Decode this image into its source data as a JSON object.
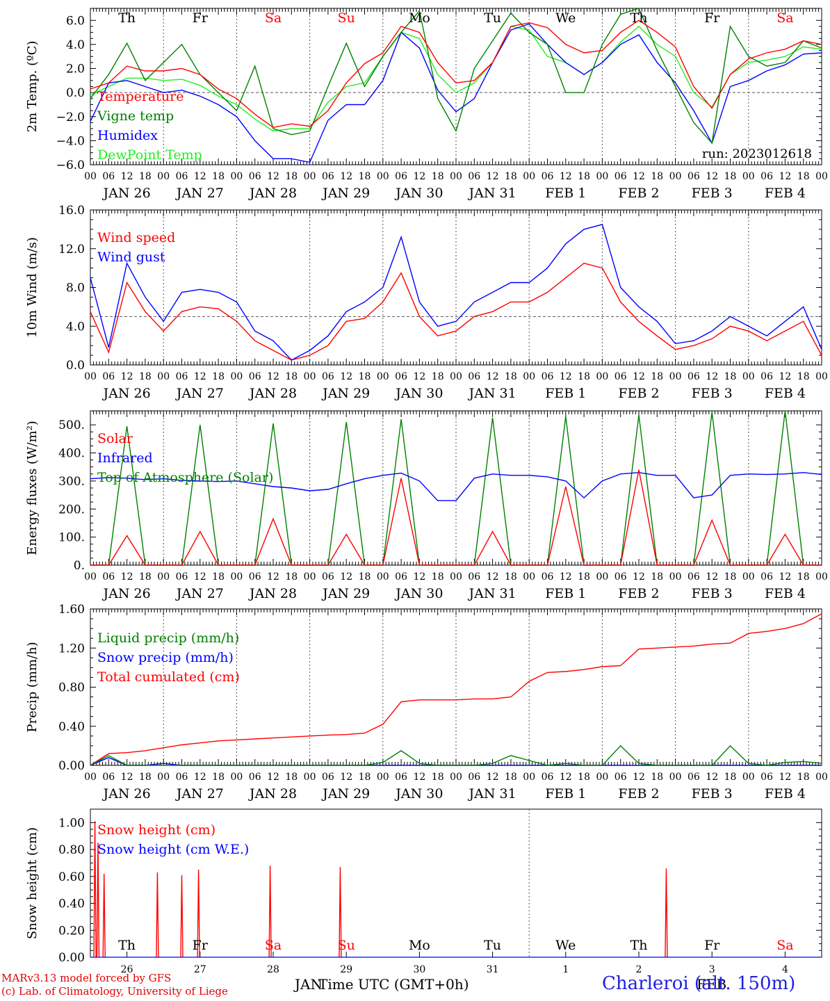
{
  "colors": {
    "red": "#ff0000",
    "green": "#008000",
    "blue": "#0000ff",
    "lightgreen": "#22ee22",
    "grid": "#555555",
    "weekend": "#ff0000"
  },
  "days": {
    "weekday_top": [
      "Th",
      "Fr",
      "Sa",
      "Su",
      "Mo",
      "Tu",
      "We",
      "Th",
      "Fr",
      "Sa"
    ],
    "weekday_bottom": [
      "Th",
      "Fr",
      "Sa",
      "Su",
      "Mo",
      "Tu",
      "We",
      "Th",
      "Fr",
      "Sa"
    ],
    "weekend_flags": [
      false,
      false,
      true,
      true,
      false,
      false,
      false,
      false,
      false,
      true
    ],
    "date_labels": [
      "JAN 26",
      "JAN 27",
      "JAN 28",
      "JAN 29",
      "JAN 30",
      "JAN 31",
      "FEB  1",
      "FEB  2",
      "FEB  3",
      "FEB  4"
    ],
    "hour_ticks": [
      "00",
      "06",
      "12",
      "18"
    ],
    "last_hour": "00",
    "day_numbers": [
      "26",
      "27",
      "28",
      "29",
      "30",
      "31",
      "1",
      "2",
      "3",
      "4"
    ]
  },
  "chart_data": [
    {
      "type": "line",
      "id": "temperature",
      "ylabel": "2m Temp. (ºC)",
      "ylim": [
        -6,
        7
      ],
      "yticks": [
        "6.0",
        "4.0",
        "2.0",
        "0.0",
        "−2.0",
        "−4.0",
        "−6.0"
      ],
      "ytick_values": [
        6,
        4,
        2,
        0,
        -2,
        -4,
        -6
      ],
      "x_hours": [
        0,
        6,
        12,
        18,
        24,
        30,
        36,
        42,
        48,
        54,
        60,
        66,
        72,
        78,
        84,
        90,
        96,
        102,
        108,
        114,
        120,
        126,
        132,
        138,
        144,
        150,
        156,
        162,
        168,
        174,
        180,
        186,
        192,
        198,
        204,
        210,
        216,
        222,
        228,
        234,
        240
      ],
      "series": [
        {
          "name": "Temperature",
          "color": "red",
          "values": [
            0.3,
            0.8,
            2.2,
            1.8,
            1.8,
            2.0,
            1.5,
            0.3,
            -0.5,
            -1.8,
            -2.9,
            -2.6,
            -2.8,
            -1.5,
            0.8,
            2.4,
            3.3,
            5.5,
            5.0,
            2.5,
            0.8,
            1.0,
            2.5,
            5.5,
            5.8,
            5.4,
            4.0,
            3.3,
            3.5,
            5.0,
            6.0,
            5.0,
            3.8,
            0.5,
            -1.3,
            1.5,
            2.8,
            3.3,
            3.6,
            4.3,
            4.0
          ]
        },
        {
          "name": "Vigne temp",
          "color": "green",
          "values": [
            -0.5,
            1.5,
            4.1,
            1.0,
            2.5,
            4.0,
            1.5,
            0.0,
            -1.5,
            2.2,
            -3.0,
            -3.5,
            -3.2,
            0.5,
            4.1,
            0.5,
            3.0,
            5.0,
            6.8,
            -0.5,
            -3.2,
            2.0,
            4.3,
            6.6,
            5.0,
            4.0,
            0.0,
            0.0,
            4.0,
            6.5,
            7.0,
            3.5,
            0.5,
            -2.5,
            -4.2,
            5.5,
            3.0,
            2.2,
            2.5,
            4.3,
            3.7
          ]
        },
        {
          "name": "Humidex",
          "color": "blue",
          "values": [
            -2.4,
            0.8,
            1.0,
            0.5,
            0.0,
            0.2,
            -0.3,
            -1.0,
            -2.0,
            -4.0,
            -5.5,
            -5.5,
            -5.8,
            -2.3,
            -1.0,
            -1.0,
            1.0,
            5.0,
            3.7,
            0.2,
            -1.6,
            -0.5,
            2.5,
            5.2,
            5.7,
            4.0,
            2.5,
            1.5,
            2.5,
            4.0,
            4.8,
            2.5,
            0.8,
            -1.5,
            -4.2,
            0.5,
            1.0,
            1.8,
            2.3,
            3.2,
            3.3
          ]
        },
        {
          "name": "DewPoint Temp",
          "color": "lightgreen",
          "values": [
            -0.2,
            0.5,
            1.2,
            1.2,
            1.0,
            1.1,
            0.6,
            -0.3,
            -1.0,
            -2.2,
            -3.2,
            -3.0,
            -3.0,
            -0.8,
            0.5,
            0.8,
            3.0,
            5.0,
            4.5,
            1.5,
            0.0,
            0.8,
            2.5,
            5.5,
            5.2,
            3.0,
            2.5,
            1.5,
            2.5,
            4.2,
            5.5,
            4.0,
            3.0,
            0.0,
            -1.2,
            1.5,
            2.5,
            2.7,
            3.0,
            3.8,
            3.6
          ]
        }
      ],
      "threshold": 0,
      "annotation": "run: 2023012618"
    },
    {
      "type": "line",
      "id": "wind",
      "ylabel": "10m Wind (m/s)",
      "ylim": [
        0,
        16
      ],
      "yticks": [
        "16.0",
        "12.0",
        "8.0",
        "4.0",
        "0.0"
      ],
      "ytick_values": [
        16,
        12,
        8,
        4,
        0
      ],
      "x_hours": [
        0,
        6,
        12,
        18,
        24,
        30,
        36,
        42,
        48,
        54,
        60,
        66,
        72,
        78,
        84,
        90,
        96,
        102,
        108,
        114,
        120,
        126,
        132,
        138,
        144,
        150,
        156,
        162,
        168,
        174,
        180,
        186,
        192,
        198,
        204,
        210,
        216,
        222,
        228,
        234,
        240
      ],
      "series": [
        {
          "name": "Wind speed",
          "color": "red",
          "values": [
            5.5,
            1.3,
            8.5,
            5.5,
            3.5,
            5.5,
            6.0,
            5.8,
            4.5,
            2.5,
            1.5,
            0.5,
            1.0,
            2.0,
            4.5,
            4.8,
            6.5,
            9.5,
            5.0,
            3.0,
            3.5,
            5.0,
            5.5,
            6.5,
            6.5,
            7.5,
            9.0,
            10.5,
            10.0,
            6.5,
            4.5,
            3.0,
            1.6,
            2.0,
            2.7,
            4.0,
            3.5,
            2.5,
            3.5,
            4.5,
            1.0
          ]
        },
        {
          "name": "Wind gust",
          "color": "blue",
          "values": [
            9.0,
            1.8,
            10.5,
            7.0,
            4.5,
            7.5,
            7.8,
            7.5,
            6.5,
            3.5,
            2.5,
            0.5,
            1.5,
            3.0,
            5.5,
            6.5,
            8.0,
            13.2,
            6.5,
            4.0,
            4.5,
            6.5,
            7.5,
            8.5,
            8.5,
            10.0,
            12.5,
            14.0,
            14.5,
            8.0,
            6.0,
            4.5,
            2.2,
            2.5,
            3.5,
            5.0,
            4.0,
            3.0,
            4.5,
            6.0,
            1.6
          ]
        }
      ],
      "threshold": 5
    },
    {
      "type": "line",
      "id": "energy",
      "ylabel": "Energy fluxes (W/m²)",
      "ylim": [
        0,
        550
      ],
      "yticks": [
        "500.",
        "400.",
        "300.",
        "200.",
        "100.",
        "0."
      ],
      "ytick_values": [
        500,
        400,
        300,
        200,
        100,
        0
      ],
      "x_hours": [
        0,
        6,
        12,
        18,
        24,
        30,
        36,
        42,
        48,
        54,
        60,
        66,
        72,
        78,
        84,
        90,
        96,
        102,
        108,
        114,
        120,
        126,
        132,
        138,
        144,
        150,
        156,
        162,
        168,
        174,
        180,
        186,
        192,
        198,
        204,
        210,
        216,
        222,
        228,
        234,
        240
      ],
      "series": [
        {
          "name": "Solar",
          "color": "red",
          "values": [
            0,
            0,
            105,
            0,
            0,
            0,
            120,
            0,
            0,
            0,
            165,
            0,
            0,
            0,
            110,
            0,
            0,
            310,
            0,
            0,
            0,
            0,
            120,
            0,
            0,
            0,
            280,
            0,
            0,
            0,
            340,
            0,
            0,
            0,
            160,
            0,
            0,
            0,
            110,
            0,
            0
          ]
        },
        {
          "name": "Infrared",
          "color": "blue",
          "values": [
            308,
            312,
            310,
            305,
            308,
            302,
            300,
            298,
            300,
            290,
            280,
            275,
            265,
            270,
            290,
            308,
            320,
            328,
            300,
            230,
            230,
            310,
            325,
            320,
            320,
            315,
            300,
            240,
            300,
            325,
            330,
            320,
            320,
            240,
            250,
            320,
            325,
            323,
            325,
            330,
            323
          ]
        },
        {
          "name": "Top of Atmosphere (Solar)",
          "color": "green",
          "values": [
            0,
            0,
            495,
            0,
            0,
            0,
            500,
            0,
            0,
            0,
            505,
            0,
            0,
            0,
            510,
            0,
            0,
            520,
            0,
            0,
            0,
            0,
            525,
            0,
            0,
            0,
            530,
            0,
            0,
            0,
            535,
            0,
            0,
            0,
            545,
            0,
            0,
            0,
            550,
            0,
            0
          ]
        }
      ]
    },
    {
      "type": "line",
      "id": "precip",
      "ylabel": "Precip (mm/h)",
      "ylim": [
        0,
        1.6
      ],
      "yticks": [
        "1.60",
        "1.20",
        "0.80",
        "0.40",
        "0.00"
      ],
      "ytick_values": [
        1.6,
        1.2,
        0.8,
        0.4,
        0
      ],
      "x_hours": [
        0,
        6,
        12,
        18,
        24,
        30,
        36,
        42,
        48,
        54,
        60,
        66,
        72,
        78,
        84,
        90,
        96,
        102,
        108,
        114,
        120,
        126,
        132,
        138,
        144,
        150,
        156,
        162,
        168,
        174,
        180,
        186,
        192,
        198,
        204,
        210,
        216,
        222,
        228,
        234,
        240
      ],
      "series": [
        {
          "name": "Liquid precip (mm/h)",
          "color": "green",
          "values": [
            0,
            0.1,
            0,
            0,
            0,
            0,
            0,
            0,
            0,
            0,
            0,
            0,
            0,
            0,
            0,
            0,
            0.03,
            0.15,
            0.02,
            0,
            0,
            0,
            0.02,
            0.1,
            0.05,
            0,
            0.02,
            0,
            0,
            0.2,
            0.02,
            0,
            0,
            0,
            0,
            0.2,
            0.02,
            0,
            0.03,
            0.04,
            0.02
          ]
        },
        {
          "name": "Snow precip (mm/h)",
          "color": "blue",
          "values": [
            0,
            0.08,
            0,
            0,
            0.02,
            0,
            0,
            0,
            0,
            0,
            0,
            0,
            0,
            0,
            0,
            0,
            0,
            0,
            0,
            0,
            0,
            0,
            0,
            0,
            0,
            0,
            0,
            0,
            0,
            0,
            0,
            0,
            0,
            0,
            0,
            0,
            0,
            0,
            0,
            0,
            0
          ]
        },
        {
          "name": "Total cumulated (cm)",
          "color": "red",
          "values": [
            0,
            0.12,
            0.13,
            0.15,
            0.18,
            0.21,
            0.23,
            0.25,
            0.26,
            0.27,
            0.28,
            0.29,
            0.3,
            0.31,
            0.315,
            0.33,
            0.42,
            0.65,
            0.67,
            0.67,
            0.67,
            0.68,
            0.68,
            0.7,
            0.86,
            0.95,
            0.96,
            0.98,
            1.01,
            1.02,
            1.19,
            1.2,
            1.21,
            1.22,
            1.24,
            1.25,
            1.35,
            1.37,
            1.4,
            1.45,
            1.55
          ]
        }
      ]
    },
    {
      "type": "line",
      "id": "snow",
      "ylabel": "Snow height (cm)",
      "ylim": [
        0,
        1.1
      ],
      "yticks": [
        "1.00",
        "0.80",
        "0.60",
        "0.40",
        "0.20",
        "0.00"
      ],
      "ytick_values": [
        1.0,
        0.8,
        0.6,
        0.4,
        0.2,
        0
      ],
      "series": [
        {
          "name": "Snow height (cm)",
          "color": "red",
          "spikes": [
            [
              1.5,
              1.01
            ],
            [
              2.5,
              0.85
            ],
            [
              4.5,
              0.62
            ],
            [
              22,
              0.63
            ],
            [
              30,
              0.61
            ],
            [
              35.5,
              0.65
            ],
            [
              59,
              0.68
            ],
            [
              82,
              0.67
            ],
            [
              189,
              0.66
            ]
          ]
        },
        {
          "name": "Snow height (cm W.E.)",
          "color": "blue",
          "spikes": []
        }
      ]
    }
  ],
  "footer": {
    "credit_line1": "MARv3.13 model forced by GFS",
    "credit_line2": "(c) Lab. of Climatology, University of Liege",
    "month_left": "JAN",
    "xlabel": "Time UTC (GMT+0h)",
    "month_right": "FEB",
    "station": "Charleroi (alt. 150m)"
  }
}
